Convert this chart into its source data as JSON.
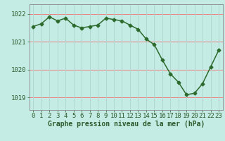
{
  "x": [
    0,
    1,
    2,
    3,
    4,
    5,
    6,
    7,
    8,
    9,
    10,
    11,
    12,
    13,
    14,
    15,
    16,
    17,
    18,
    19,
    20,
    21,
    22,
    23
  ],
  "y": [
    1021.55,
    1021.65,
    1021.9,
    1021.75,
    1021.85,
    1021.6,
    1021.5,
    1021.55,
    1021.6,
    1021.85,
    1021.8,
    1021.75,
    1021.6,
    1021.45,
    1021.1,
    1020.9,
    1020.35,
    1019.85,
    1019.55,
    1019.1,
    1019.15,
    1019.5,
    1020.1,
    1020.7
  ],
  "line_color": "#2d6a2d",
  "marker": "D",
  "marker_size": 2.5,
  "bg_color": "#c5ece4",
  "grid_color_v": "#b0d8d0",
  "grid_color_h": "#f08080",
  "text_color": "#2d5a2d",
  "xlabel": "Graphe pression niveau de la mer (hPa)",
  "ylim_bottom": 1018.55,
  "ylim_top": 1022.35,
  "yticks": [
    1019,
    1020,
    1021,
    1022
  ],
  "xticks": [
    0,
    1,
    2,
    3,
    4,
    5,
    6,
    7,
    8,
    9,
    10,
    11,
    12,
    13,
    14,
    15,
    16,
    17,
    18,
    19,
    20,
    21,
    22,
    23
  ],
  "xlabel_fontsize": 7.0,
  "tick_fontsize": 6.5,
  "axis_color": "#888888",
  "line_lw": 1.1
}
